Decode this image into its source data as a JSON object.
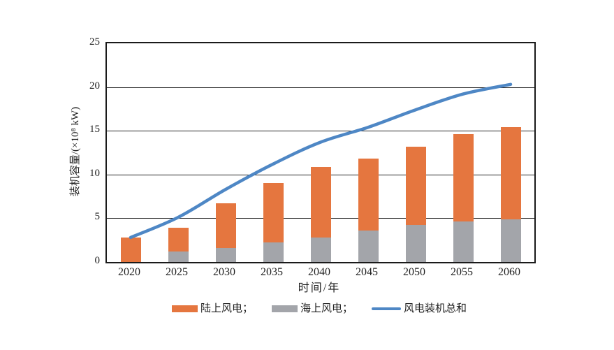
{
  "chart_data": {
    "type": "bar",
    "variant": "stacked-bars-with-smooth-line-overlay",
    "categories": [
      "2020",
      "2025",
      "2030",
      "2035",
      "2040",
      "2045",
      "2050",
      "2055",
      "2060"
    ],
    "series": [
      {
        "name": "陆上风电",
        "kind": "bar",
        "stack": "capacity",
        "color": "#E5763F",
        "values": [
          2.8,
          3.9,
          6.7,
          9.0,
          10.9,
          11.8,
          13.2,
          14.6,
          15.4
        ]
      },
      {
        "name": "海上风电",
        "kind": "bar",
        "stack": "capacity",
        "color": "#A3A5AA",
        "values": [
          0,
          1.2,
          1.6,
          2.2,
          2.8,
          3.6,
          4.2,
          4.6,
          4.9
        ]
      },
      {
        "name": "风电装机总和",
        "kind": "line",
        "color": "#4E87C5",
        "smooth": true,
        "values": [
          2.8,
          5.1,
          8.3,
          11.2,
          13.7,
          15.4,
          17.4,
          19.2,
          20.3
        ]
      }
    ],
    "xlabel": "时间/年",
    "ylabel": "装机容量/(×10⁸ kW)",
    "ylim": [
      0,
      25
    ],
    "yticks": [
      "0",
      "5",
      "10",
      "15",
      "20",
      "25"
    ],
    "grid": "horizontal",
    "legend_position": "bottom"
  },
  "legend": {
    "items": [
      {
        "label": "陆上风电；",
        "swatch": "rect",
        "color": "#E5763F"
      },
      {
        "label": "海上风电；",
        "swatch": "rect",
        "color": "#A3A5AA"
      },
      {
        "label": "风电装机总和",
        "swatch": "line",
        "color": "#4E87C5"
      }
    ]
  },
  "colors": {
    "axis_border": "#1A1A1A",
    "gridline": "#262626",
    "text": "#1F1F1F",
    "background": "#FFFFFF"
  }
}
